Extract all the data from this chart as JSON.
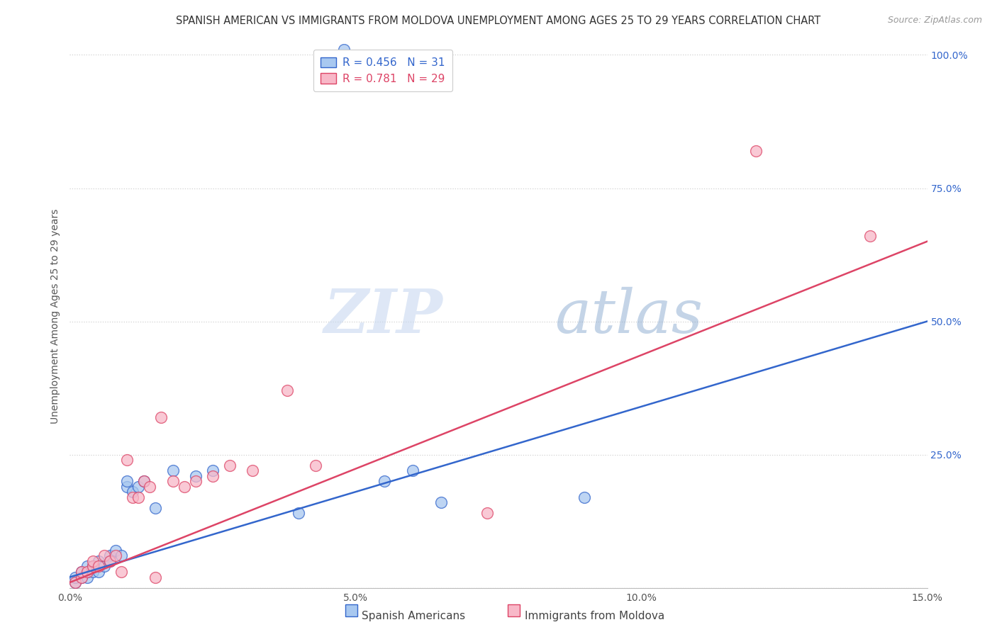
{
  "title": "SPANISH AMERICAN VS IMMIGRANTS FROM MOLDOVA UNEMPLOYMENT AMONG AGES 25 TO 29 YEARS CORRELATION CHART",
  "source": "Source: ZipAtlas.com",
  "ylabel": "Unemployment Among Ages 25 to 29 years",
  "xmin": 0.0,
  "xmax": 0.15,
  "ymin": 0.0,
  "ymax": 1.0,
  "xticks": [
    0.0,
    0.025,
    0.05,
    0.075,
    0.1,
    0.125,
    0.15
  ],
  "xtick_labels": [
    "0.0%",
    "",
    "5.0%",
    "",
    "10.0%",
    "",
    "15.0%"
  ],
  "yticks": [
    0.0,
    0.25,
    0.5,
    0.75,
    1.0
  ],
  "ytick_labels": [
    "",
    "25.0%",
    "50.0%",
    "75.0%",
    "100.0%"
  ],
  "blue_R": 0.456,
  "blue_N": 31,
  "pink_R": 0.781,
  "pink_N": 29,
  "blue_color": "#A8C8F0",
  "pink_color": "#F8B8C8",
  "blue_line_color": "#3366CC",
  "pink_line_color": "#DD4466",
  "legend_label_blue": "Spanish Americans",
  "legend_label_pink": "Immigrants from Moldova",
  "watermark_zip": "ZIP",
  "watermark_atlas": "atlas",
  "grid_color": "#CCCCCC",
  "background_color": "#FFFFFF",
  "title_fontsize": 10.5,
  "axis_label_fontsize": 10,
  "tick_fontsize": 10,
  "legend_fontsize": 11,
  "blue_scatter_x": [
    0.001,
    0.001,
    0.002,
    0.002,
    0.003,
    0.003,
    0.003,
    0.004,
    0.004,
    0.005,
    0.005,
    0.006,
    0.007,
    0.007,
    0.008,
    0.009,
    0.01,
    0.01,
    0.011,
    0.012,
    0.013,
    0.015,
    0.018,
    0.022,
    0.025,
    0.04,
    0.055,
    0.06,
    0.065,
    0.09,
    0.048
  ],
  "blue_scatter_y": [
    0.01,
    0.02,
    0.02,
    0.03,
    0.02,
    0.03,
    0.04,
    0.03,
    0.04,
    0.03,
    0.05,
    0.04,
    0.06,
    0.05,
    0.07,
    0.06,
    0.19,
    0.2,
    0.18,
    0.19,
    0.2,
    0.15,
    0.22,
    0.21,
    0.22,
    0.14,
    0.2,
    0.22,
    0.16,
    0.17,
    1.01
  ],
  "pink_scatter_x": [
    0.001,
    0.002,
    0.002,
    0.003,
    0.004,
    0.004,
    0.005,
    0.006,
    0.007,
    0.008,
    0.009,
    0.01,
    0.011,
    0.012,
    0.013,
    0.014,
    0.015,
    0.016,
    0.018,
    0.02,
    0.022,
    0.025,
    0.028,
    0.032,
    0.038,
    0.043,
    0.073,
    0.12,
    0.14
  ],
  "pink_scatter_y": [
    0.01,
    0.02,
    0.03,
    0.03,
    0.04,
    0.05,
    0.04,
    0.06,
    0.05,
    0.06,
    0.03,
    0.24,
    0.17,
    0.17,
    0.2,
    0.19,
    0.02,
    0.32,
    0.2,
    0.19,
    0.2,
    0.21,
    0.23,
    0.22,
    0.37,
    0.23,
    0.14,
    0.82,
    0.66
  ],
  "blue_line_x0": 0.0,
  "blue_line_y0": 0.02,
  "blue_line_x1": 0.15,
  "blue_line_y1": 0.5,
  "pink_line_x0": 0.0,
  "pink_line_y0": 0.01,
  "pink_line_x1": 0.15,
  "pink_line_y1": 0.65
}
